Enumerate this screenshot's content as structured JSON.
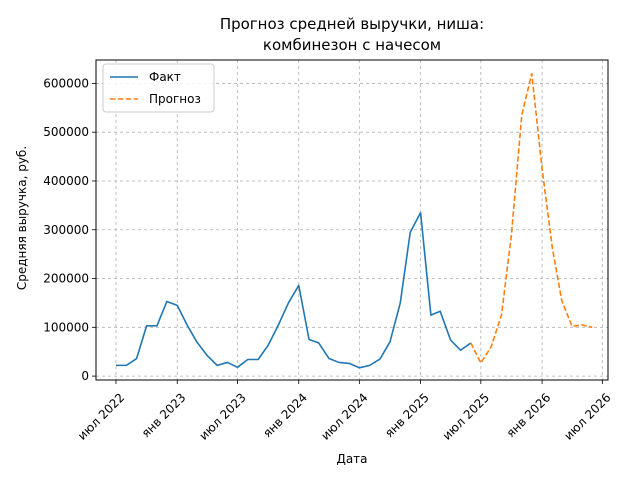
{
  "chart_data": {
    "type": "line",
    "title_lines": [
      "Прогноз средней выручки, ниша:",
      "комбинезон с начесом"
    ],
    "xlabel": "Дата",
    "ylabel": "Средняя выручка, руб.",
    "xlim": [
      "2022-05-02",
      "2026-07-18"
    ],
    "ylim": [
      -8000,
      648000
    ],
    "yticks": [
      0,
      100000,
      200000,
      300000,
      400000,
      500000,
      600000
    ],
    "ytick_labels": [
      "0",
      "100000",
      "200000",
      "300000",
      "400000",
      "500000",
      "600000"
    ],
    "xticks": [
      {
        "date": "2022-07-01",
        "label": "июл 2022"
      },
      {
        "date": "2023-01-01",
        "label": "янв 2023"
      },
      {
        "date": "2023-07-01",
        "label": "июл 2023"
      },
      {
        "date": "2024-01-01",
        "label": "янв 2024"
      },
      {
        "date": "2024-07-01",
        "label": "июл 2024"
      },
      {
        "date": "2025-01-01",
        "label": "янв 2025"
      },
      {
        "date": "2025-07-01",
        "label": "июл 2025"
      },
      {
        "date": "2026-01-01",
        "label": "янв 2026"
      },
      {
        "date": "2026-07-01",
        "label": "июл 2026"
      }
    ],
    "grid": true,
    "legend_position": "top-left",
    "series": [
      {
        "name": "Факт",
        "color": "#1f77b4",
        "style": "solid",
        "points": [
          {
            "x": "2022-07-01",
            "y": 22000
          },
          {
            "x": "2022-08-01",
            "y": 22000
          },
          {
            "x": "2022-09-01",
            "y": 36000
          },
          {
            "x": "2022-10-01",
            "y": 103000
          },
          {
            "x": "2022-11-01",
            "y": 103000
          },
          {
            "x": "2022-12-01",
            "y": 153000
          },
          {
            "x": "2023-01-01",
            "y": 145000
          },
          {
            "x": "2023-02-01",
            "y": 103000
          },
          {
            "x": "2023-03-01",
            "y": 70000
          },
          {
            "x": "2023-04-01",
            "y": 42000
          },
          {
            "x": "2023-05-01",
            "y": 22000
          },
          {
            "x": "2023-06-01",
            "y": 28000
          },
          {
            "x": "2023-07-01",
            "y": 18000
          },
          {
            "x": "2023-08-01",
            "y": 34000
          },
          {
            "x": "2023-09-01",
            "y": 34000
          },
          {
            "x": "2023-10-01",
            "y": 63000
          },
          {
            "x": "2023-11-01",
            "y": 105000
          },
          {
            "x": "2023-12-01",
            "y": 150000
          },
          {
            "x": "2024-01-01",
            "y": 186000
          },
          {
            "x": "2024-02-01",
            "y": 75000
          },
          {
            "x": "2024-03-01",
            "y": 68000
          },
          {
            "x": "2024-04-01",
            "y": 36000
          },
          {
            "x": "2024-05-01",
            "y": 28000
          },
          {
            "x": "2024-06-01",
            "y": 26000
          },
          {
            "x": "2024-07-01",
            "y": 17000
          },
          {
            "x": "2024-08-01",
            "y": 22000
          },
          {
            "x": "2024-09-01",
            "y": 35000
          },
          {
            "x": "2024-10-01",
            "y": 70000
          },
          {
            "x": "2024-11-01",
            "y": 150000
          },
          {
            "x": "2024-12-01",
            "y": 295000
          },
          {
            "x": "2025-01-01",
            "y": 335000
          },
          {
            "x": "2025-02-01",
            "y": 125000
          },
          {
            "x": "2025-03-01",
            "y": 133000
          },
          {
            "x": "2025-04-01",
            "y": 74000
          },
          {
            "x": "2025-05-01",
            "y": 53000
          },
          {
            "x": "2025-06-01",
            "y": 68000
          }
        ]
      },
      {
        "name": "Прогноз",
        "color": "#ff7f0e",
        "style": "dashed",
        "points": [
          {
            "x": "2025-06-01",
            "y": 68000
          },
          {
            "x": "2025-07-01",
            "y": 27000
          },
          {
            "x": "2025-08-01",
            "y": 60000
          },
          {
            "x": "2025-09-01",
            "y": 125000
          },
          {
            "x": "2025-10-01",
            "y": 290000
          },
          {
            "x": "2025-11-01",
            "y": 535000
          },
          {
            "x": "2025-12-01",
            "y": 620000
          },
          {
            "x": "2026-01-01",
            "y": 425000
          },
          {
            "x": "2026-02-01",
            "y": 262000
          },
          {
            "x": "2026-03-01",
            "y": 155000
          },
          {
            "x": "2026-04-01",
            "y": 102000
          },
          {
            "x": "2026-05-01",
            "y": 105000
          },
          {
            "x": "2026-06-01",
            "y": 100000
          }
        ]
      }
    ]
  }
}
